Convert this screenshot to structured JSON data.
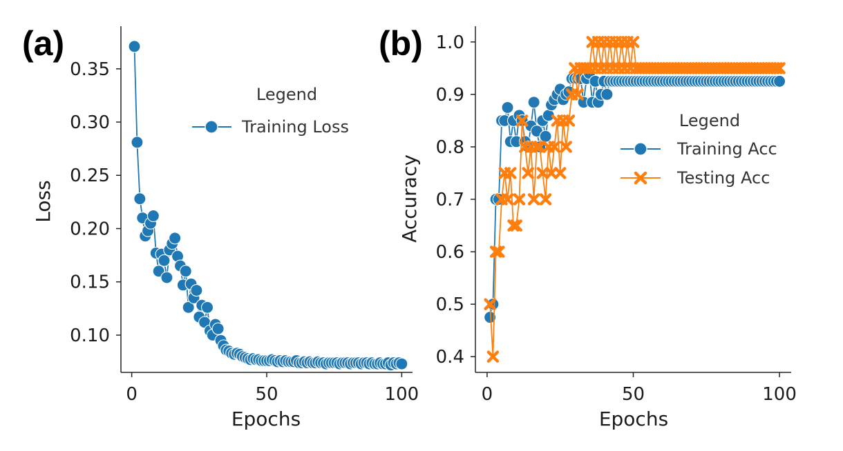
{
  "colors": {
    "blue": "#1f77b4",
    "orange": "#ff7f0e",
    "axis": "#222222"
  },
  "chart_data": [
    {
      "panel": "(a)",
      "type": "line",
      "xlabel": "Epochs",
      "ylabel": "Loss",
      "xlim": [
        -4,
        104
      ],
      "ylim": [
        0.065,
        0.39
      ],
      "xticks": [
        "0",
        "50",
        "100"
      ],
      "yticks": [
        "0.10",
        "0.15",
        "0.20",
        "0.25",
        "0.30",
        "0.35"
      ],
      "legend": {
        "title": "Legend",
        "position": "upper-right",
        "entries": [
          "Training Loss"
        ]
      },
      "series": [
        {
          "name": "Training Loss",
          "marker": "circle",
          "color": "#1f77b4",
          "x": [
            1,
            2,
            3,
            4,
            5,
            6,
            7,
            8,
            9,
            10,
            11,
            12,
            13,
            14,
            15,
            16,
            17,
            18,
            19,
            20,
            21,
            22,
            23,
            24,
            25,
            26,
            27,
            28,
            29,
            30,
            31,
            32,
            33,
            34,
            35,
            36,
            37,
            38,
            39,
            40,
            41,
            42,
            43,
            44,
            45,
            46,
            47,
            48,
            49,
            50,
            51,
            52,
            53,
            54,
            55,
            56,
            57,
            58,
            59,
            60,
            61,
            62,
            63,
            64,
            65,
            66,
            67,
            68,
            69,
            70,
            71,
            72,
            73,
            74,
            75,
            76,
            77,
            78,
            79,
            80,
            81,
            82,
            83,
            84,
            85,
            86,
            87,
            88,
            89,
            90,
            91,
            92,
            93,
            94,
            95,
            96,
            97,
            98,
            99,
            100
          ],
          "y": [
            0.371,
            0.281,
            0.228,
            0.21,
            0.193,
            0.198,
            0.205,
            0.212,
            0.177,
            0.16,
            0.176,
            0.17,
            0.154,
            0.18,
            0.186,
            0.191,
            0.174,
            0.165,
            0.147,
            0.16,
            0.126,
            0.148,
            0.135,
            0.142,
            0.117,
            0.128,
            0.112,
            0.126,
            0.104,
            0.1,
            0.11,
            0.106,
            0.095,
            0.09,
            0.086,
            0.085,
            0.083,
            0.082,
            0.083,
            0.082,
            0.08,
            0.079,
            0.078,
            0.077,
            0.078,
            0.077,
            0.077,
            0.076,
            0.076,
            0.076,
            0.076,
            0.077,
            0.076,
            0.075,
            0.076,
            0.075,
            0.076,
            0.075,
            0.075,
            0.075,
            0.076,
            0.074,
            0.074,
            0.075,
            0.074,
            0.075,
            0.074,
            0.074,
            0.075,
            0.074,
            0.074,
            0.073,
            0.074,
            0.074,
            0.074,
            0.074,
            0.073,
            0.074,
            0.074,
            0.074,
            0.073,
            0.074,
            0.074,
            0.074,
            0.073,
            0.074,
            0.074,
            0.073,
            0.074,
            0.073,
            0.073,
            0.074,
            0.073,
            0.073,
            0.074,
            0.072,
            0.074,
            0.073,
            0.074,
            0.073
          ]
        }
      ]
    },
    {
      "panel": "(b)",
      "type": "line",
      "xlabel": "Epochs",
      "ylabel": "Accuracy",
      "xlim": [
        -4,
        104
      ],
      "ylim": [
        0.37,
        1.03
      ],
      "xticks": [
        "0",
        "50",
        "100"
      ],
      "yticks": [
        "0.4",
        "0.5",
        "0.6",
        "0.7",
        "0.8",
        "0.9",
        "1.0"
      ],
      "legend": {
        "title": "Legend",
        "position": "center-right",
        "entries": [
          "Training Acc",
          "Testing Acc"
        ]
      },
      "series": [
        {
          "name": "Training Acc",
          "marker": "circle",
          "color": "#1f77b4",
          "x": [
            1,
            2,
            3,
            4,
            5,
            6,
            7,
            8,
            9,
            10,
            11,
            12,
            13,
            14,
            15,
            16,
            17,
            18,
            19,
            20,
            21,
            22,
            23,
            24,
            25,
            26,
            27,
            28,
            29,
            30,
            31,
            32,
            33,
            34,
            35,
            36,
            37,
            38,
            39,
            40,
            41,
            42,
            43,
            44,
            45,
            46,
            47,
            48,
            49,
            50,
            51,
            52,
            53,
            54,
            55,
            56,
            57,
            58,
            59,
            60,
            61,
            62,
            63,
            64,
            65,
            66,
            67,
            68,
            69,
            70,
            71,
            72,
            73,
            74,
            75,
            76,
            77,
            78,
            79,
            80,
            81,
            82,
            83,
            84,
            85,
            86,
            87,
            88,
            89,
            90,
            91,
            92,
            93,
            94,
            95,
            96,
            97,
            98,
            99,
            100
          ],
          "y": [
            0.475,
            0.5,
            0.7,
            0.7,
            0.85,
            0.85,
            0.875,
            0.81,
            0.85,
            0.81,
            0.86,
            0.85,
            0.81,
            0.8,
            0.84,
            0.885,
            0.83,
            0.8,
            0.85,
            0.82,
            0.86,
            0.88,
            0.89,
            0.9,
            0.91,
            0.89,
            0.9,
            0.905,
            0.93,
            0.93,
            0.93,
            0.93,
            0.885,
            0.93,
            0.94,
            0.885,
            0.925,
            0.885,
            0.9,
            0.925,
            0.9,
            0.925,
            0.925,
            0.925,
            0.925,
            0.925,
            0.925,
            0.925,
            0.925,
            0.925,
            0.925,
            0.925,
            0.925,
            0.925,
            0.925,
            0.925,
            0.925,
            0.925,
            0.925,
            0.925,
            0.925,
            0.925,
            0.925,
            0.925,
            0.925,
            0.925,
            0.925,
            0.925,
            0.925,
            0.925,
            0.925,
            0.925,
            0.925,
            0.925,
            0.925,
            0.925,
            0.925,
            0.925,
            0.925,
            0.925,
            0.925,
            0.925,
            0.925,
            0.925,
            0.925,
            0.925,
            0.925,
            0.925,
            0.925,
            0.925,
            0.925,
            0.925,
            0.925,
            0.925,
            0.925,
            0.925,
            0.925,
            0.925,
            0.925,
            0.925
          ]
        },
        {
          "name": "Testing Acc",
          "marker": "x",
          "color": "#ff7f0e",
          "x": [
            1,
            2,
            3,
            4,
            5,
            6,
            7,
            8,
            9,
            10,
            11,
            12,
            13,
            14,
            15,
            16,
            17,
            18,
            19,
            20,
            21,
            22,
            23,
            24,
            25,
            26,
            27,
            28,
            29,
            30,
            31,
            32,
            33,
            34,
            35,
            36,
            37,
            38,
            39,
            40,
            41,
            42,
            43,
            44,
            45,
            46,
            47,
            48,
            49,
            50,
            51,
            52,
            53,
            54,
            55,
            56,
            57,
            58,
            59,
            60,
            61,
            62,
            63,
            64,
            65,
            66,
            67,
            68,
            69,
            70,
            71,
            72,
            73,
            74,
            75,
            76,
            77,
            78,
            79,
            80,
            81,
            82,
            83,
            84,
            85,
            86,
            87,
            88,
            89,
            90,
            91,
            92,
            93,
            94,
            95,
            96,
            97,
            98,
            99,
            100
          ],
          "y": [
            0.5,
            0.4,
            0.6,
            0.6,
            0.7,
            0.75,
            0.7,
            0.75,
            0.65,
            0.65,
            0.7,
            0.85,
            0.8,
            0.75,
            0.8,
            0.7,
            0.8,
            0.8,
            0.75,
            0.7,
            0.8,
            0.75,
            0.8,
            0.85,
            0.75,
            0.85,
            0.8,
            0.85,
            0.9,
            0.95,
            0.9,
            0.95,
            0.95,
            0.95,
            0.95,
            1.0,
            0.95,
            1.0,
            0.95,
            1.0,
            0.95,
            1.0,
            0.95,
            1.0,
            0.95,
            1.0,
            0.95,
            1.0,
            0.95,
            1.0,
            0.95,
            0.95,
            0.95,
            0.95,
            0.95,
            0.95,
            0.95,
            0.95,
            0.95,
            0.95,
            0.95,
            0.95,
            0.95,
            0.95,
            0.95,
            0.95,
            0.95,
            0.95,
            0.95,
            0.95,
            0.95,
            0.95,
            0.95,
            0.95,
            0.95,
            0.95,
            0.95,
            0.95,
            0.95,
            0.95,
            0.95,
            0.95,
            0.95,
            0.95,
            0.95,
            0.95,
            0.95,
            0.95,
            0.95,
            0.95,
            0.95,
            0.95,
            0.95,
            0.95,
            0.95,
            0.95,
            0.95,
            0.95,
            0.95,
            0.95
          ]
        }
      ]
    }
  ]
}
